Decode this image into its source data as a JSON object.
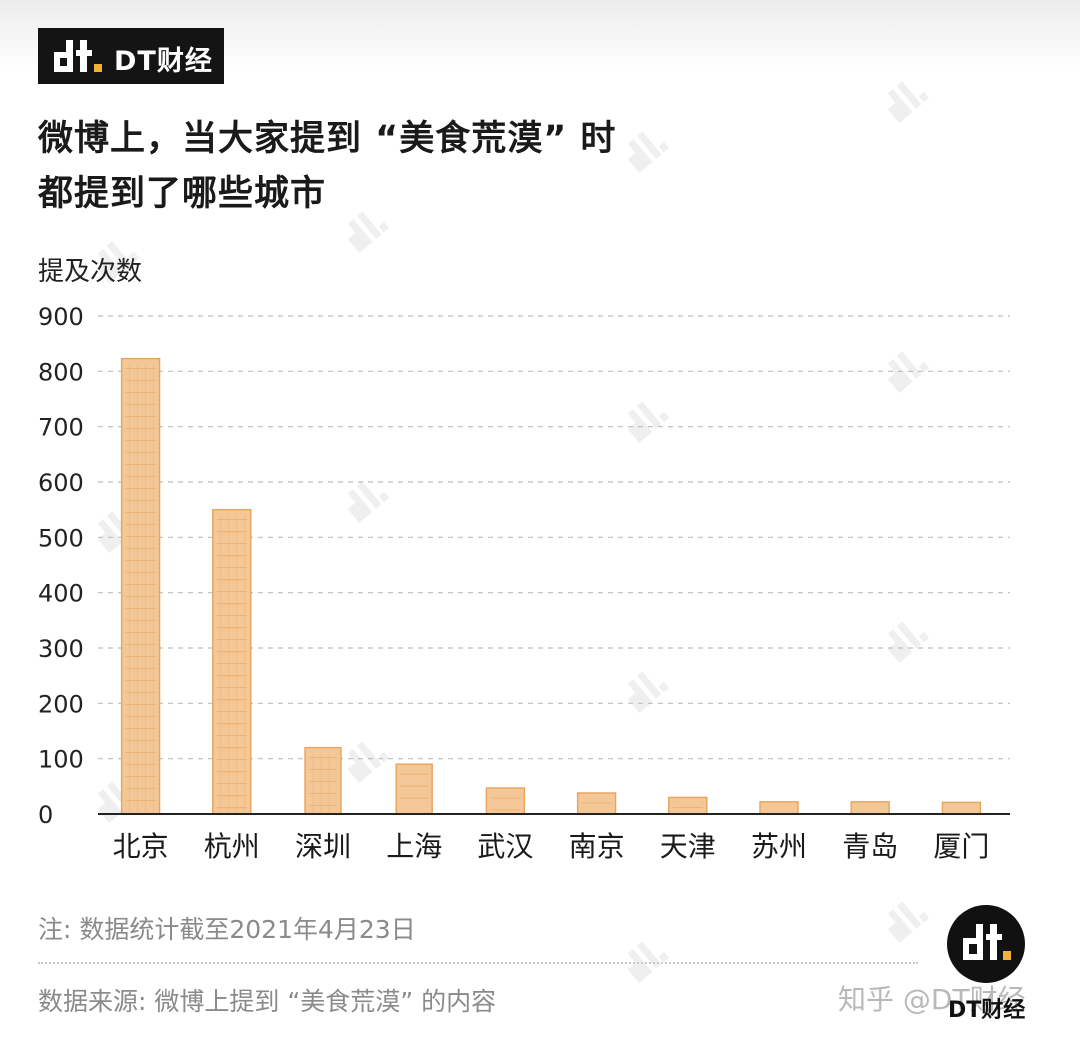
{
  "brand": {
    "logo_text": "DT财经"
  },
  "title": {
    "line1": "微博上，当大家提到 “美食荒漠” 时",
    "line2": "都提到了哪些城市"
  },
  "chart_data": {
    "type": "bar",
    "categories": [
      "北京",
      "杭州",
      "深圳",
      "上海",
      "武汉",
      "南京",
      "天津",
      "苏州",
      "青岛",
      "厦门"
    ],
    "values": [
      823,
      550,
      120,
      90,
      47,
      38,
      30,
      22,
      22,
      21
    ],
    "ylabel": "提及次数",
    "ylim": [
      0,
      900
    ],
    "yticks": [
      0,
      100,
      200,
      300,
      400,
      500,
      600,
      700,
      800,
      900
    ],
    "grid": true,
    "colors": {
      "bar": "#f4c796",
      "bar_stroke": "#e8a35e",
      "grid": "#bdbdbd"
    }
  },
  "footer": {
    "note": "注: 数据统计截至2021年4月23日",
    "source": "数据来源: 微博上提到 “美食荒漠” 的内容",
    "watermark_text": "知乎 @DT财经",
    "badge_text": "DT财经"
  }
}
